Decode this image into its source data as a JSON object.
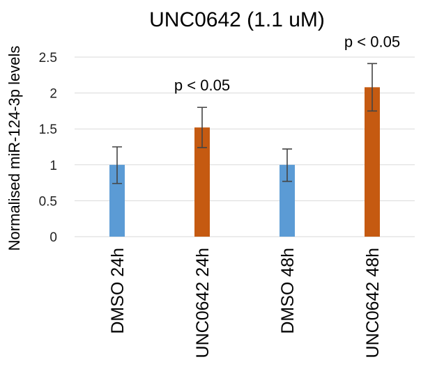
{
  "chart_data": {
    "type": "bar",
    "title": "UNC0642 (1.1 uM)",
    "ylabel": "Normalised miR-124-3p levels",
    "xlabel": "",
    "categories": [
      "DMSO 24h",
      "UNC0642 24h",
      "DMSO 48h",
      "UNC0642 48h"
    ],
    "values": [
      1.0,
      1.52,
      1.0,
      2.08
    ],
    "error_low": [
      0.74,
      1.24,
      0.77,
      1.75
    ],
    "error_high": [
      1.25,
      1.8,
      1.22,
      2.41
    ],
    "bar_colors": [
      "#5b9bd5",
      "#c55a11",
      "#5b9bd5",
      "#c55a11"
    ],
    "ylim": [
      0,
      2.5
    ],
    "yticks": [
      "0",
      "0.5",
      "1",
      "1.5",
      "2",
      "2.5"
    ],
    "grid": true,
    "annotations": [
      {
        "text": "p < 0.05",
        "category": "UNC0642 24h"
      },
      {
        "text": "p < 0.05",
        "category": "UNC0642 48h"
      }
    ]
  }
}
